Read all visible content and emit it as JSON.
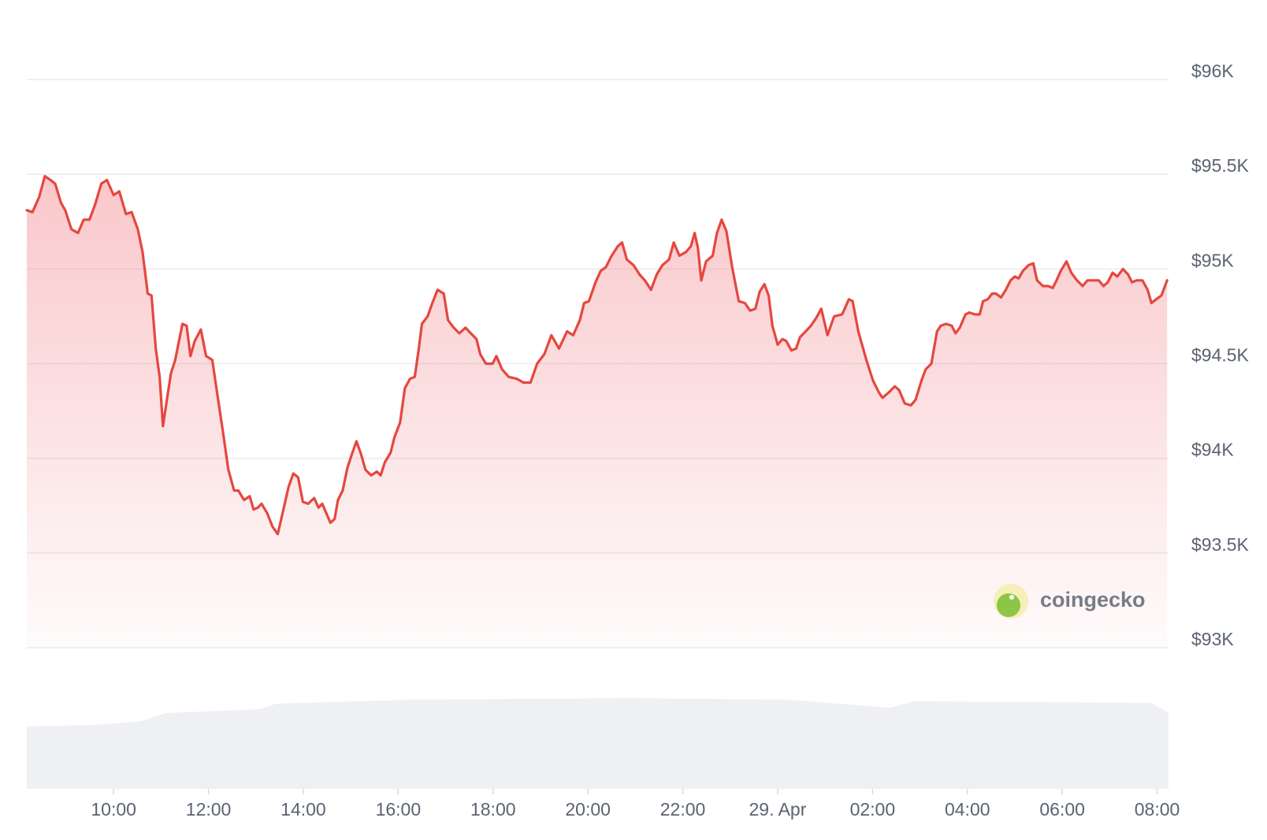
{
  "chart_data": {
    "type": "line",
    "color": "#e5473f",
    "area": true,
    "grid": true,
    "watermark": "coingecko",
    "xlim": [
      8.17,
      32.24
    ],
    "xticks": [
      {
        "value": 10,
        "label": "10:00"
      },
      {
        "value": 12,
        "label": "12:00"
      },
      {
        "value": 14,
        "label": "14:00"
      },
      {
        "value": 16,
        "label": "16:00"
      },
      {
        "value": 18,
        "label": "18:00"
      },
      {
        "value": 20,
        "label": "20:00"
      },
      {
        "value": 22,
        "label": "22:00"
      },
      {
        "value": 24,
        "label": "29. Apr"
      },
      {
        "value": 26,
        "label": "02:00"
      },
      {
        "value": 28,
        "label": "04:00"
      },
      {
        "value": 30,
        "label": "06:00"
      },
      {
        "value": 32,
        "label": "08:00"
      }
    ],
    "ylim": [
      93000,
      96000
    ],
    "yticks": [
      {
        "value": 93000,
        "label": "$93K"
      },
      {
        "value": 93500,
        "label": "$93.5K"
      },
      {
        "value": 94000,
        "label": "$94K"
      },
      {
        "value": 94500,
        "label": "$94.5K"
      },
      {
        "value": 95000,
        "label": "$95K"
      },
      {
        "value": 95500,
        "label": "$95.5K"
      },
      {
        "value": 96000,
        "label": "$96K"
      }
    ],
    "x": [
      8.17,
      8.29,
      8.43,
      8.55,
      8.67,
      8.77,
      8.89,
      8.98,
      9.11,
      9.25,
      9.37,
      9.49,
      9.61,
      9.74,
      9.86,
      10.0,
      10.12,
      10.26,
      10.38,
      10.51,
      10.61,
      10.72,
      10.8,
      10.89,
      10.97,
      11.04,
      11.13,
      11.21,
      11.3,
      11.45,
      11.54,
      11.62,
      11.71,
      11.84,
      11.95,
      12.08,
      12.18,
      12.3,
      12.42,
      12.54,
      12.63,
      12.75,
      12.87,
      12.95,
      13.04,
      13.12,
      13.24,
      13.35,
      13.46,
      13.58,
      13.69,
      13.79,
      13.89,
      13.99,
      14.1,
      14.23,
      14.32,
      14.4,
      14.57,
      14.66,
      14.73,
      14.83,
      14.93,
      15.02,
      15.12,
      15.22,
      15.31,
      15.43,
      15.55,
      15.63,
      15.72,
      15.84,
      15.92,
      16.04,
      16.14,
      16.25,
      16.35,
      16.43,
      16.5,
      16.62,
      16.72,
      16.83,
      16.96,
      17.05,
      17.17,
      17.29,
      17.42,
      17.53,
      17.65,
      17.73,
      17.85,
      17.99,
      18.07,
      18.19,
      18.33,
      18.5,
      18.64,
      18.79,
      18.93,
      19.08,
      19.23,
      19.39,
      19.56,
      19.69,
      19.83,
      19.92,
      20.02,
      20.16,
      20.27,
      20.38,
      20.5,
      20.63,
      20.72,
      20.82,
      20.96,
      21.09,
      21.2,
      21.33,
      21.45,
      21.57,
      21.71,
      21.81,
      21.93,
      22.07,
      22.17,
      22.25,
      22.32,
      22.39,
      22.49,
      22.63,
      22.72,
      22.82,
      22.92,
      23.04,
      23.18,
      23.31,
      23.42,
      23.53,
      23.62,
      23.72,
      23.81,
      23.89,
      24.0,
      24.1,
      24.18,
      24.29,
      24.39,
      24.47,
      24.59,
      24.7,
      24.81,
      24.92,
      25.05,
      25.19,
      25.36,
      25.5,
      25.58,
      25.7,
      25.87,
      26.01,
      26.13,
      26.21,
      26.35,
      26.47,
      26.56,
      26.68,
      26.81,
      26.91,
      27.03,
      27.12,
      27.24,
      27.36,
      27.44,
      27.55,
      27.67,
      27.75,
      27.84,
      27.96,
      28.04,
      28.16,
      28.26,
      28.33,
      28.43,
      28.52,
      28.6,
      28.71,
      28.81,
      28.91,
      29.0,
      29.08,
      29.17,
      29.29,
      29.39,
      29.47,
      29.59,
      29.7,
      29.8,
      29.88,
      29.97,
      30.09,
      30.19,
      30.31,
      30.43,
      30.53,
      30.65,
      30.77,
      30.87,
      30.96,
      31.06,
      31.16,
      31.28,
      31.39,
      31.47,
      31.57,
      31.69,
      31.8,
      31.88,
      31.98,
      32.09,
      32.21
    ],
    "values": [
      95310,
      95300,
      95380,
      95490,
      95470,
      95450,
      95350,
      95310,
      95210,
      95190,
      95260,
      95260,
      95340,
      95450,
      95470,
      95390,
      95410,
      95290,
      95300,
      95210,
      95090,
      94870,
      94860,
      94580,
      94430,
      94170,
      94320,
      94450,
      94520,
      94710,
      94700,
      94540,
      94620,
      94680,
      94540,
      94520,
      94350,
      94150,
      93940,
      93830,
      93830,
      93780,
      93800,
      93730,
      93740,
      93760,
      93710,
      93640,
      93600,
      93730,
      93850,
      93920,
      93900,
      93770,
      93760,
      93790,
      93740,
      93760,
      93660,
      93680,
      93780,
      93830,
      93950,
      94020,
      94090,
      94020,
      93940,
      93910,
      93930,
      93910,
      93980,
      94030,
      94110,
      94190,
      94370,
      94420,
      94430,
      94570,
      94710,
      94750,
      94820,
      94890,
      94870,
      94730,
      94690,
      94660,
      94690,
      94660,
      94630,
      94550,
      94500,
      94500,
      94540,
      94470,
      94430,
      94420,
      94400,
      94400,
      94500,
      94550,
      94650,
      94580,
      94670,
      94650,
      94730,
      94820,
      94830,
      94930,
      94990,
      95010,
      95070,
      95120,
      95140,
      95050,
      95020,
      94970,
      94940,
      94890,
      94970,
      95020,
      95050,
      95140,
      95070,
      95090,
      95120,
      95190,
      95110,
      94940,
      95040,
      95070,
      95190,
      95260,
      95200,
      95010,
      94830,
      94820,
      94780,
      94790,
      94880,
      94920,
      94860,
      94700,
      94600,
      94630,
      94620,
      94570,
      94580,
      94640,
      94670,
      94700,
      94740,
      94790,
      94650,
      94750,
      94760,
      94840,
      94830,
      94670,
      94520,
      94410,
      94350,
      94320,
      94350,
      94380,
      94360,
      94290,
      94280,
      94310,
      94410,
      94470,
      94500,
      94670,
      94700,
      94710,
      94700,
      94660,
      94690,
      94760,
      94770,
      94760,
      94760,
      94830,
      94840,
      94870,
      94870,
      94850,
      94890,
      94940,
      94960,
      94950,
      94990,
      95020,
      95030,
      94940,
      94910,
      94910,
      94900,
      94940,
      94990,
      95040,
      94980,
      94940,
      94910,
      94940,
      94940,
      94940,
      94910,
      94930,
      94980,
      94960,
      95000,
      94970,
      94930,
      94940,
      94940,
      94890,
      94820,
      94840,
      94860,
      94940
    ]
  }
}
